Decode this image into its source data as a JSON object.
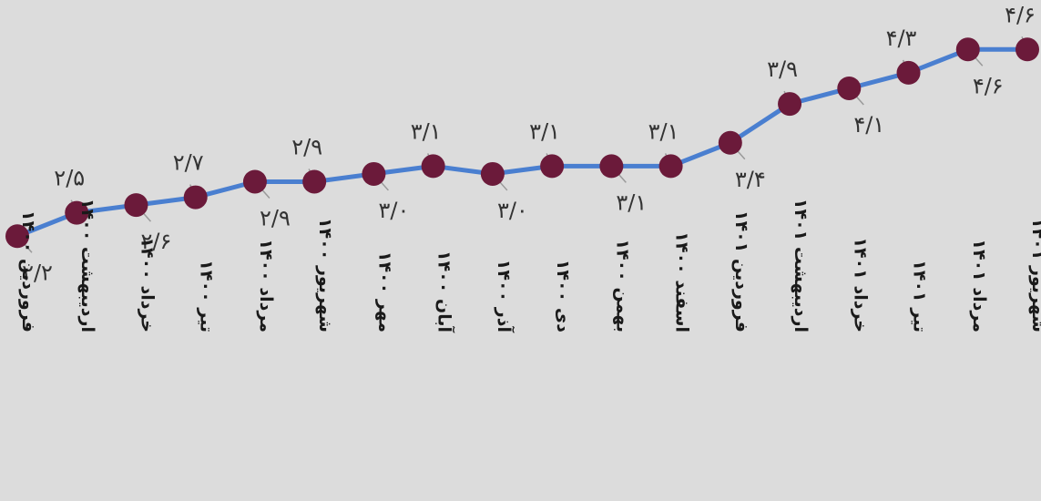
{
  "chart_data": {
    "type": "line",
    "title": "",
    "xlabel": "",
    "ylabel": "",
    "ylim": [
      2.0,
      4.8
    ],
    "grid": false,
    "legend": "none",
    "categories": [
      "فروردین ۱۴۰۰",
      "اردیبهشت ۱۴۰۰",
      "خرداد ۱۴۰۰",
      "تیر ۱۴۰۰",
      "مرداد ۱۴۰۰",
      "شهریور ۱۴۰۰",
      "مهر ۱۴۰۰",
      "آبان ۱۴۰۰",
      "آذر ۱۴۰۰",
      "دی ۱۴۰۰",
      "بهمن ۱۴۰۰",
      "اسفند ۱۴۰۰",
      "فروردین ۱۴۰۱",
      "اردیبهشت ۱۴۰۱",
      "خرداد ۱۴۰۱",
      "تیر ۱۴۰۱",
      "مرداد ۱۴۰۱",
      "شهریور ۱۴۰۱"
    ],
    "series": [
      {
        "values": [
          2.2,
          2.5,
          2.6,
          2.7,
          2.9,
          2.9,
          3.0,
          3.1,
          3.0,
          3.1,
          3.1,
          3.1,
          3.4,
          3.9,
          4.1,
          4.3,
          4.6,
          4.6
        ]
      }
    ],
    "data_labels": [
      "۲/۲",
      "۲/۵",
      "۲/۶",
      "۲/۷",
      "۲/۹",
      "۲/۹",
      "۳/۰",
      "۳/۱",
      "۳/۰",
      "۳/۱",
      "۳/۱",
      "۳/۱",
      "۳/۴",
      "۳/۹",
      "۴/۱",
      "۴/۳",
      "۴/۶",
      "۴/۶"
    ],
    "colors": {
      "line": "#4a7fd0",
      "marker": "#6b1a3a",
      "background": "#dcdcdc"
    }
  }
}
